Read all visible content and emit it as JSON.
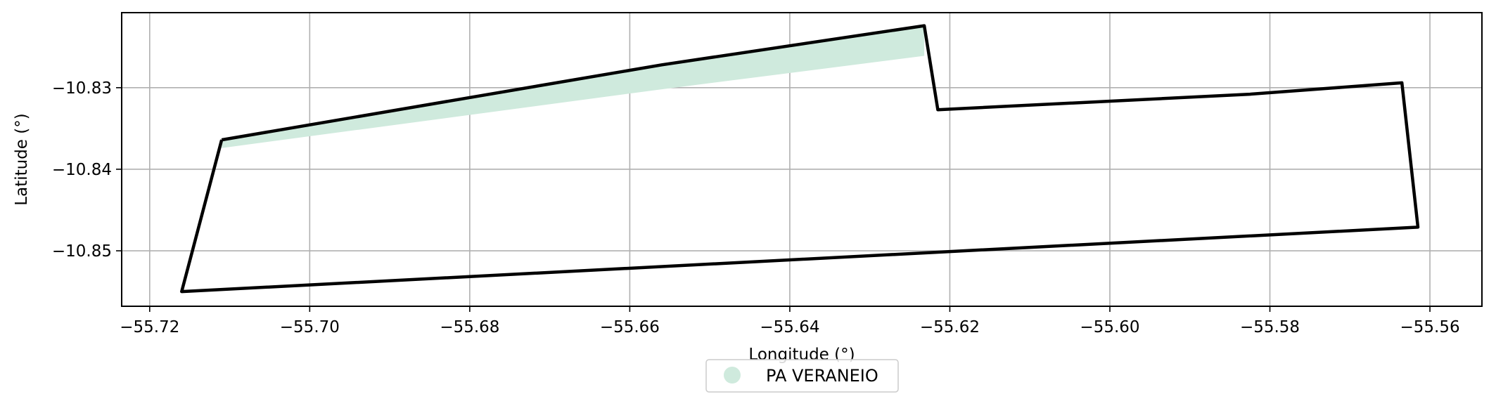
{
  "chart_data": {
    "type": "map",
    "title": "",
    "xlabel": "Longitude (°)",
    "ylabel": "Latitude (°)",
    "xlim": [
      -55.7235,
      -55.5535
    ],
    "ylim": [
      -10.8568,
      -10.8208
    ],
    "xticks": [
      -55.72,
      -55.7,
      -55.68,
      -55.66,
      -55.64,
      -55.62,
      -55.6,
      -55.58,
      -55.56
    ],
    "xtick_labels": [
      "−55.72",
      "−55.70",
      "−55.68",
      "−55.66",
      "−55.64",
      "−55.62",
      "−55.60",
      "−55.58",
      "−55.56"
    ],
    "yticks": [
      -10.83,
      -10.84,
      -10.85
    ],
    "ytick_labels": [
      "−10.83",
      "−10.84",
      "−10.85"
    ],
    "grid": true,
    "legend_position": "below-center",
    "series": [
      {
        "name": "PA VERANEIO",
        "color": "#cfeadd",
        "kind": "filled-polygon",
        "points": [
          [
            -55.711,
            -10.8364
          ],
          [
            -55.656,
            -10.8272
          ],
          [
            -55.6232,
            -10.8224
          ],
          [
            -55.6232,
            -10.8261
          ],
          [
            -55.656,
            -10.8302
          ],
          [
            -55.711,
            -10.8374
          ]
        ]
      }
    ],
    "boundary": {
      "color": "#000000",
      "kind": "outline",
      "points": [
        [
          -55.711,
          -10.8364
        ],
        [
          -55.656,
          -10.8272
        ],
        [
          -55.6232,
          -10.8224
        ],
        [
          -55.6215,
          -10.8327
        ],
        [
          -55.5825,
          -10.8308
        ],
        [
          -55.5635,
          -10.8294
        ],
        [
          -55.5615,
          -10.8471
        ],
        [
          -55.716,
          -10.855
        ],
        [
          -55.711,
          -10.8364
        ]
      ]
    }
  }
}
